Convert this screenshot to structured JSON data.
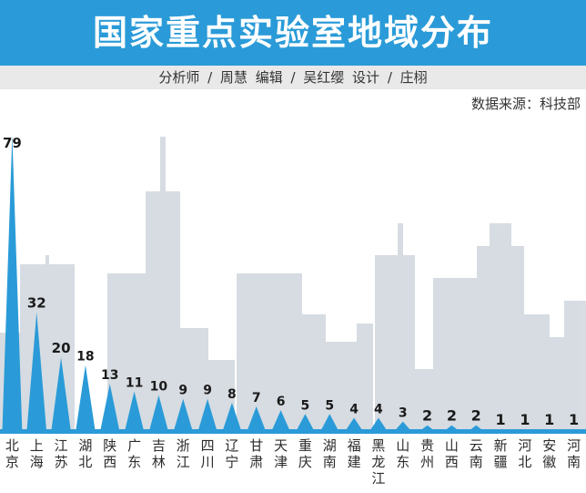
{
  "header": {
    "title": "国家重点实验室地域分布",
    "credits": "分析师 / 周慧   编辑 / 吴红缨   设计 / 庄栩",
    "source": "数据来源：科技部"
  },
  "colors": {
    "title_bg": "#2a9bd8",
    "bar": "#2a9bd8",
    "skyline": "#c9d1d9",
    "credits_bg": "#e9e9ea"
  },
  "chart_data": {
    "type": "bar",
    "title": "国家重点实验室地域分布",
    "categories": [
      "北京",
      "上海",
      "江苏",
      "湖北",
      "陕西",
      "广东",
      "吉林",
      "浙江",
      "四川",
      "辽宁",
      "甘肃",
      "天津",
      "重庆",
      "湖南",
      "福建",
      "黑龙江",
      "山东",
      "贵州",
      "山西",
      "云南",
      "新疆",
      "河北",
      "安徽",
      "河南"
    ],
    "values": [
      79,
      32,
      20,
      18,
      13,
      11,
      10,
      9,
      9,
      8,
      7,
      6,
      5,
      5,
      4,
      4,
      3,
      2,
      2,
      2,
      1,
      1,
      1,
      1
    ],
    "ylim": [
      0,
      79
    ],
    "grid": false,
    "legend": "none"
  }
}
